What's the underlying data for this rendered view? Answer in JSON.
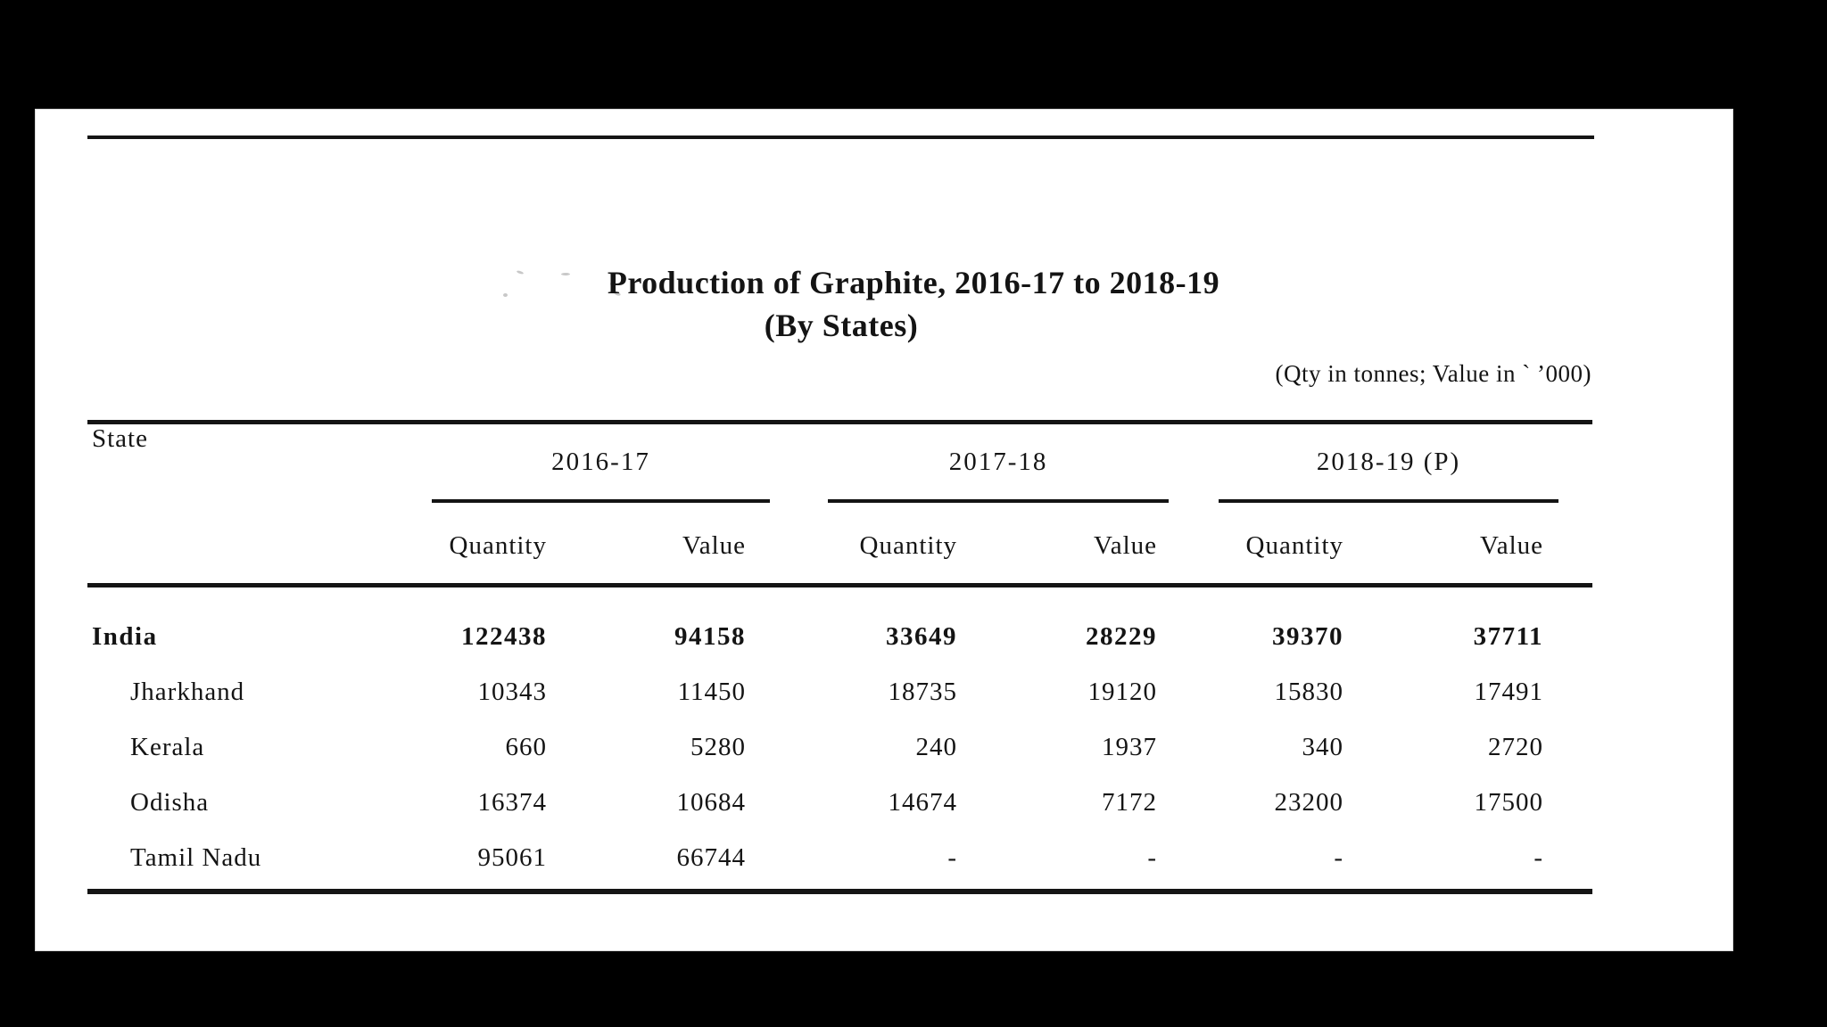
{
  "document": {
    "title_line1": "Production of Graphite, 2016-17 to 2018-19",
    "title_line2": "(By States)",
    "units_note": "(Qty in tonnes; Value in ` ’000)"
  },
  "table": {
    "state_header": "State",
    "year_groups": [
      {
        "label": "2016-17",
        "sub": [
          "Quantity",
          "Value"
        ]
      },
      {
        "label": "2017-18",
        "sub": [
          "Quantity",
          "Value"
        ]
      },
      {
        "label": "2018-19 (P)",
        "sub": [
          "Quantity",
          "Value"
        ]
      }
    ],
    "rows": [
      {
        "state": "India",
        "values": [
          "122438",
          "94158",
          "33649",
          "28229",
          "39370",
          "37711"
        ]
      },
      {
        "state": "Jharkhand",
        "values": [
          "10343",
          "11450",
          "18735",
          "19120",
          "15830",
          "17491"
        ]
      },
      {
        "state": "Kerala",
        "values": [
          "660",
          "5280",
          "240",
          "1937",
          "340",
          "2720"
        ]
      },
      {
        "state": "Odisha",
        "values": [
          "16374",
          "10684",
          "14674",
          "7172",
          "23200",
          "17500"
        ]
      },
      {
        "state": "Tamil Nadu",
        "values": [
          "95061",
          "66744",
          "-",
          "-",
          "-",
          "-"
        ]
      }
    ]
  }
}
